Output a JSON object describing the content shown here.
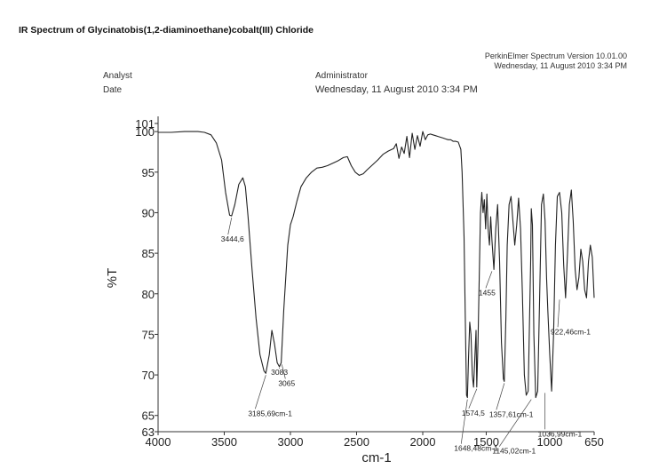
{
  "title": "IR Spectrum of Glycinatobis(1,2-diaminoethane)cobalt(III) Chloride",
  "software": "PerkinElmer Spectrum Version 10.01.00",
  "software_date": "Wednesday, 11 August 2010 3:34 PM",
  "analyst_label": "Analyst",
  "analyst_value": "Administrator",
  "date_label": "Date",
  "date_value": "Wednesday, 11 August 2010 3:34 PM",
  "chart_data": {
    "type": "line",
    "xlabel": "cm-1",
    "ylabel": "%T",
    "xlim": [
      4000,
      650
    ],
    "ylim": [
      63,
      101
    ],
    "x_reversed": true,
    "x_ticks": [
      4000,
      3500,
      3000,
      2500,
      2000,
      1500,
      1000,
      650
    ],
    "y_ticks": [
      63,
      65,
      70,
      75,
      80,
      85,
      90,
      95,
      100,
      101
    ],
    "series": [
      {
        "x": [
          4000,
          3900,
          3800,
          3700,
          3650,
          3600,
          3560,
          3520,
          3490,
          3460,
          3444.6,
          3420,
          3390,
          3360,
          3340,
          3320,
          3290,
          3260,
          3230,
          3200,
          3185.69,
          3160,
          3140,
          3120,
          3100,
          3083,
          3070,
          3065,
          3050,
          3020,
          3000,
          2980,
          2950,
          2920,
          2880,
          2840,
          2800,
          2760,
          2720,
          2680,
          2640,
          2600,
          2570,
          2540,
          2510,
          2480,
          2450,
          2420,
          2380,
          2340,
          2300,
          2260,
          2220,
          2200,
          2180,
          2160,
          2140,
          2120,
          2100,
          2080,
          2060,
          2040,
          2020,
          2000,
          1980,
          1960,
          1940,
          1920,
          1900,
          1880,
          1860,
          1840,
          1820,
          1800,
          1780,
          1760,
          1740,
          1720,
          1700,
          1690,
          1675,
          1665,
          1655,
          1648.48,
          1640,
          1630,
          1620,
          1610,
          1600,
          1590,
          1580,
          1574.5,
          1565,
          1555,
          1545,
          1535,
          1525,
          1515,
          1505,
          1495,
          1485,
          1475,
          1465,
          1455,
          1440,
          1425,
          1410,
          1395,
          1380,
          1365,
          1357.61,
          1345,
          1335,
          1320,
          1305,
          1290,
          1275,
          1260,
          1245,
          1230,
          1215,
          1200,
          1185,
          1170,
          1160,
          1150,
          1145.02,
          1136,
          1125,
          1110,
          1095,
          1080,
          1065,
          1050,
          1036.99,
          1025,
          1015,
          1000,
          985,
          970,
          955,
          940,
          922.46,
          905,
          890,
          875,
          860,
          845,
          830,
          815,
          800,
          785,
          770,
          755,
          740,
          725,
          710,
          695,
          680,
          665,
          650
        ],
        "y": [
          99.9,
          99.9,
          100.0,
          100.0,
          99.9,
          99.6,
          98.6,
          96.5,
          92.5,
          89.7,
          89.6,
          91.0,
          93.5,
          94.3,
          93.2,
          89.5,
          83.0,
          77.0,
          72.5,
          70.5,
          70.2,
          72.5,
          75.5,
          73.8,
          71.5,
          71.0,
          71.5,
          73.0,
          78.0,
          86.0,
          88.5,
          89.5,
          91.5,
          93.2,
          94.3,
          95.0,
          95.5,
          95.6,
          95.8,
          96.1,
          96.4,
          96.8,
          96.9,
          95.8,
          95.0,
          94.6,
          94.8,
          95.3,
          95.9,
          96.5,
          97.2,
          97.6,
          97.9,
          98.5,
          96.7,
          98.1,
          97.3,
          99.4,
          96.8,
          99.8,
          97.8,
          99.5,
          98.2,
          100.0,
          99.0,
          99.6,
          99.7,
          99.6,
          99.5,
          99.4,
          99.3,
          99.2,
          99.1,
          99.0,
          99.0,
          98.8,
          98.8,
          98.7,
          97.8,
          95.0,
          87.0,
          77.0,
          67.5,
          67.2,
          72.0,
          76.5,
          75.0,
          70.0,
          68.5,
          72.0,
          75.5,
          68.5,
          74.0,
          82.0,
          90.0,
          92.5,
          90.0,
          91.6,
          88.0,
          92.3,
          88.0,
          86.0,
          89.5,
          86.6,
          83.0,
          88.0,
          91.0,
          84.0,
          74.0,
          69.5,
          69.2,
          77.0,
          86.0,
          91.0,
          92.0,
          89.0,
          86.0,
          88.5,
          91.8,
          88.0,
          80.0,
          70.0,
          67.5,
          68.0,
          76.0,
          84.0,
          90.5,
          88.5,
          75.0,
          67.2,
          68.0,
          79.0,
          91.0,
          92.3,
          89.0,
          82.0,
          78.0,
          72.5,
          68.0,
          75.0,
          86.0,
          92.0,
          92.5,
          90.0,
          83.5,
          79.5,
          85.0,
          91.0,
          92.8,
          89.0,
          83.0,
          80.5,
          82.0,
          85.5,
          84.0,
          80.5,
          79.5,
          84.0,
          86.0,
          84.5,
          79.5
        ]
      }
    ],
    "annotations": [
      {
        "label": "3444,6",
        "x": 3444.6,
        "y": 89.6
      },
      {
        "label": "3083",
        "x": 3083,
        "y": 71.0
      },
      {
        "label": "3065",
        "x": 3065,
        "y": 71.5
      },
      {
        "label": "3185,69cm-1",
        "x": 3185.69,
        "y": 70.2
      },
      {
        "label": "1455",
        "x": 1455,
        "y": 83.0
      },
      {
        "label": "922,46cm-1",
        "x": 922.46,
        "y": 79.5
      },
      {
        "label": "1574,5",
        "x": 1574.5,
        "y": 68.5
      },
      {
        "label": "1357,61cm-1",
        "x": 1357.61,
        "y": 69.2
      },
      {
        "label": "1036,99cm-1",
        "x": 1036.99,
        "y": 68.0
      },
      {
        "label": "1648,48cm-1",
        "x": 1648.48,
        "y": 67.2
      },
      {
        "label": "1145,02cm-1",
        "x": 1145.02,
        "y": 67.2
      }
    ]
  }
}
